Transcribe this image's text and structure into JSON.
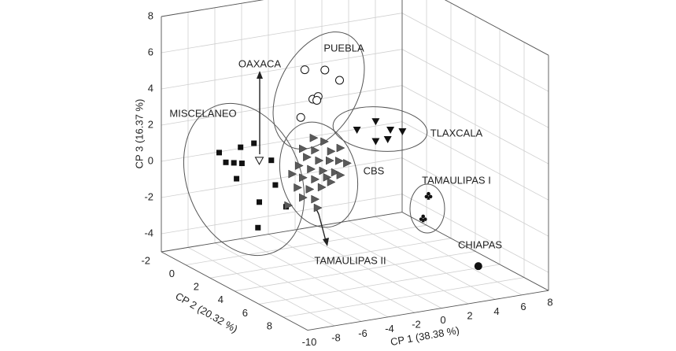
{
  "chart_data": {
    "type": "scatter3d",
    "xlabel": "CP 1 (38.38 %)",
    "ylabel": "CP 2 (20.32 %)",
    "zlabel": "CP 3 (16.37 %)",
    "xlim": [
      -10,
      8
    ],
    "ylim": [
      -2,
      10
    ],
    "zlim": [
      -5,
      8
    ],
    "xticks": [
      -10,
      -8,
      -6,
      -4,
      -2,
      0,
      2,
      4,
      6,
      8
    ],
    "yticks": [
      -2,
      0,
      2,
      4,
      6,
      8
    ],
    "zticks": [
      -4,
      -2,
      0,
      2,
      4,
      6,
      8
    ],
    "grid": true,
    "series": [
      {
        "name": "MISCELANEO",
        "marker": "square",
        "color": "#111111",
        "x": [
          -7.5,
          -5.9,
          -4.9,
          -6.4,
          -5.8,
          -7.0,
          -3.6,
          -6.2,
          -3.3,
          -4.5,
          -2.5,
          -4.6
        ],
        "y": [
          0,
          0,
          0,
          0,
          0,
          0,
          0,
          0,
          0,
          0,
          0,
          0
        ],
        "z": [
          0.9,
          1.0,
          1.1,
          0.2,
          0.1,
          0.3,
          0.0,
          -0.7,
          -1.4,
          -2.2,
          -2.7,
          -3.6
        ]
      },
      {
        "name": "OAXACA",
        "marker": "triangle-down-open",
        "color": "#111111",
        "x": [
          -4.5
        ],
        "y": [
          0
        ],
        "z": [
          0.1
        ]
      },
      {
        "name": "PUEBLA",
        "marker": "circle-open",
        "color": "#111111",
        "x": [
          -1.1,
          0.4,
          1.5,
          -0.5,
          -0.1,
          -0.2,
          -1.4
        ],
        "y": [
          0,
          0,
          0,
          0,
          0,
          0,
          0
        ],
        "z": [
          4.7,
          4.5,
          3.8,
          3.0,
          3.1,
          2.9,
          2.1
        ]
      },
      {
        "name": "TLAXCALA",
        "marker": "triangle-down",
        "color": "#111111",
        "x": [
          2.8,
          4.2,
          5.3,
          6.2,
          4.2,
          5.1
        ],
        "y": [
          0,
          0,
          0,
          0,
          0,
          0
        ],
        "z": [
          0.9,
          1.2,
          0.6,
          0.4,
          0.1,
          0.1
        ]
      },
      {
        "name": "CBS",
        "marker": "triangle-right",
        "color": "#5a5a5a",
        "x": [
          -2.3,
          -1.5,
          -3.1,
          -2.2,
          -1.0,
          -0.3,
          -2.8,
          -1.9,
          -1.1,
          -0.4,
          0.2,
          -3.4,
          -2.5,
          -1.6,
          -0.7,
          -3.1,
          -2.2,
          -1.3,
          -3.5,
          -2.6,
          -1.7,
          -3.1,
          -2.2,
          -4.2,
          -1.0,
          -0.3,
          -3.9,
          -2.0
        ],
        "y": [
          2,
          2,
          2,
          2,
          2,
          2,
          2,
          2,
          2,
          2,
          2,
          2,
          2,
          2,
          2,
          2,
          2,
          2,
          2,
          2,
          2,
          2,
          2,
          2,
          2,
          2,
          2,
          2
        ],
        "z": [
          1.8,
          1.5,
          1.3,
          1.1,
          0.9,
          1.0,
          0.8,
          0.5,
          0.4,
          0.3,
          0.1,
          0.4,
          0.1,
          -0.1,
          -0.3,
          -0.3,
          -0.5,
          -0.5,
          -0.8,
          -1.0,
          -1.0,
          -1.4,
          -1.6,
          -1.7,
          -0.8,
          -0.5,
          0.0,
          -2.1
        ]
      },
      {
        "name": "TAMAULIPAS I",
        "marker": "club",
        "color": "#111111",
        "x": [
          4.5,
          4.1
        ],
        "y": [
          4,
          4
        ],
        "z": [
          -1.5,
          -2.7
        ]
      },
      {
        "name": "CHIAPAS",
        "marker": "circle",
        "color": "#111111",
        "x": [
          6.4
        ],
        "y": [
          6
        ],
        "z": [
          -4.9
        ]
      }
    ],
    "annotations": [
      "TAMAULIPAS II"
    ]
  }
}
